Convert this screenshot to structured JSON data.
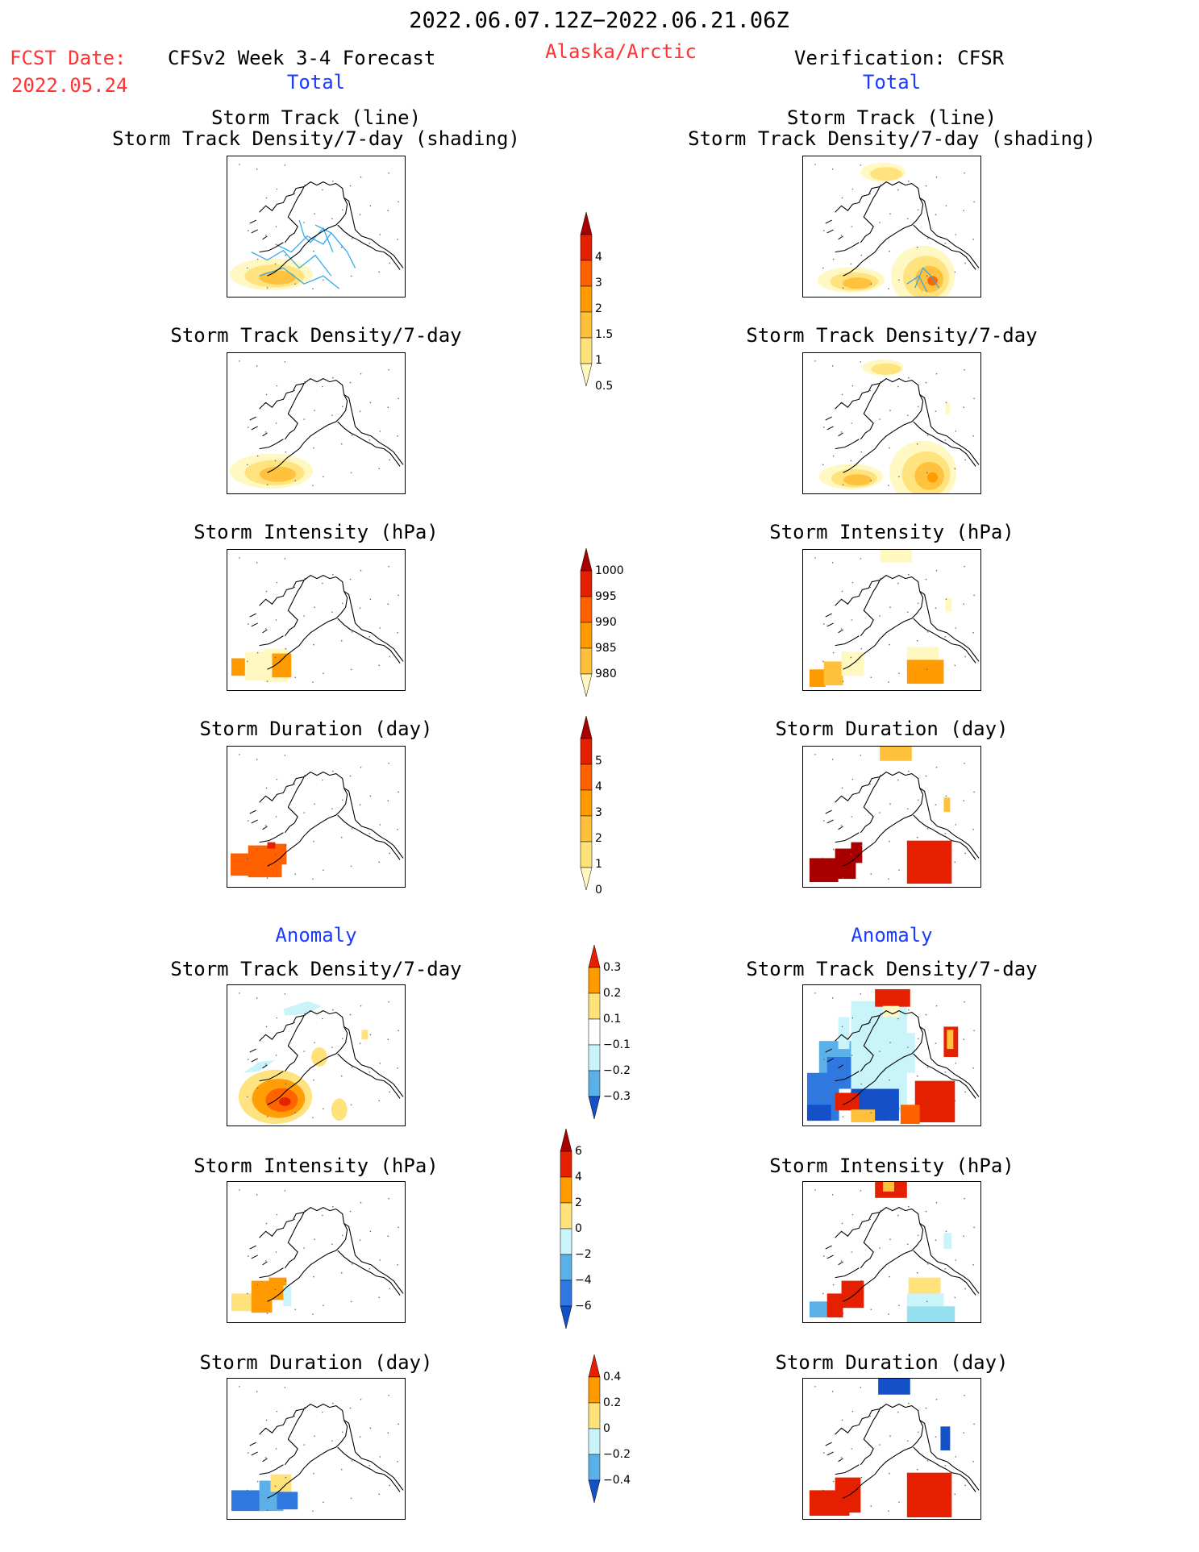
{
  "header": {
    "date_range": "2022.06.07.12Z−2022.06.21.06Z",
    "fcst_label": "FCST Date:",
    "fcst_date": "2022.05.24",
    "model": "CFSv2 Week 3-4 Forecast",
    "region": "Alaska/Arctic",
    "verification": "Verification: CFSR",
    "left_total": "Total",
    "right_total": "Total",
    "left_anomaly": "Anomaly",
    "right_anomaly": "Anomaly"
  },
  "panel_titles": {
    "track_line": "Storm Track (line)",
    "track_shading": "Storm Track Density/7-day (shading)",
    "density": "Storm Track Density/7-day",
    "intensity": "Storm Intensity (hPa)",
    "duration": "Storm Duration (day)"
  },
  "colors": {
    "warm": [
      "#fff8c0",
      "#ffe27a",
      "#ffc03c",
      "#ff9a00",
      "#ff6000",
      "#e42000",
      "#a80000"
    ],
    "cool": [
      "#c8f4fa",
      "#96e0f0",
      "#5cb0e8",
      "#2f78e0",
      "#1450c8"
    ],
    "track": "#33aaee"
  },
  "chart_data": [
    {
      "type": "heatmap",
      "title": "Storm Track Density/7-day",
      "colorbar_ticks": [
        "0.5",
        "1",
        "1.5",
        "2",
        "3",
        "4"
      ],
      "panels": [
        "forecast",
        "verification"
      ]
    },
    {
      "type": "heatmap",
      "title": "Storm Intensity (hPa)",
      "colorbar_ticks": [
        "1000",
        "995",
        "990",
        "985",
        "980"
      ],
      "panels": [
        "forecast",
        "verification"
      ]
    },
    {
      "type": "heatmap",
      "title": "Storm Duration (day)",
      "colorbar_ticks": [
        "0",
        "1",
        "2",
        "3",
        "4",
        "5"
      ],
      "panels": [
        "forecast",
        "verification"
      ]
    },
    {
      "type": "heatmap",
      "title": "Storm Track Density/7-day Anomaly",
      "colorbar_ticks": [
        "0.3",
        "0.2",
        "0.1",
        "−0.1",
        "−0.2",
        "−0.3"
      ],
      "panels": [
        "forecast",
        "verification"
      ]
    },
    {
      "type": "heatmap",
      "title": "Storm Intensity (hPa) Anomaly",
      "colorbar_ticks": [
        "6",
        "4",
        "2",
        "0",
        "−2",
        "−4",
        "−6"
      ],
      "panels": [
        "forecast",
        "verification"
      ]
    },
    {
      "type": "heatmap",
      "title": "Storm Duration (day) Anomaly",
      "colorbar_ticks": [
        "0.4",
        "0.2",
        "0",
        "−0.2",
        "−0.4"
      ],
      "panels": [
        "forecast",
        "verification"
      ]
    }
  ]
}
